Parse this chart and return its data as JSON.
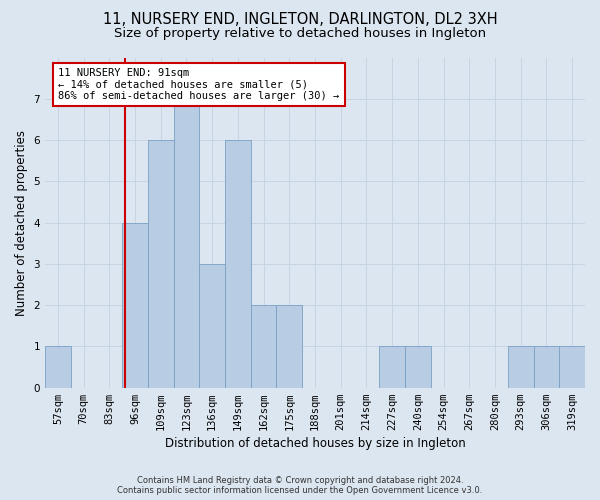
{
  "title": "11, NURSERY END, INGLETON, DARLINGTON, DL2 3XH",
  "subtitle": "Size of property relative to detached houses in Ingleton",
  "xlabel": "Distribution of detached houses by size in Ingleton",
  "ylabel": "Number of detached properties",
  "categories": [
    "57sqm",
    "70sqm",
    "83sqm",
    "96sqm",
    "109sqm",
    "123sqm",
    "136sqm",
    "149sqm",
    "162sqm",
    "175sqm",
    "188sqm",
    "201sqm",
    "214sqm",
    "227sqm",
    "240sqm",
    "254sqm",
    "267sqm",
    "280sqm",
    "293sqm",
    "306sqm",
    "319sqm"
  ],
  "values": [
    1,
    0,
    0,
    4,
    6,
    7,
    3,
    6,
    2,
    2,
    0,
    0,
    0,
    1,
    1,
    0,
    0,
    0,
    1,
    1,
    1
  ],
  "bar_color": "#b8cce4",
  "bar_edge_color": "#7aa0c4",
  "subject_line_color": "#cc0000",
  "annotation_text": "11 NURSERY END: 91sqm\n← 14% of detached houses are smaller (5)\n86% of semi-detached houses are larger (30) →",
  "annotation_box_color": "#ffffff",
  "annotation_box_edge": "#cc0000",
  "ylim": [
    0,
    8
  ],
  "yticks": [
    0,
    1,
    2,
    3,
    4,
    5,
    6,
    7
  ],
  "grid_color": "#c8d4e4",
  "bg_color": "#dce6f0",
  "footer_line1": "Contains HM Land Registry data © Crown copyright and database right 2024.",
  "footer_line2": "Contains public sector information licensed under the Open Government Licence v3.0.",
  "title_fontsize": 10.5,
  "subtitle_fontsize": 9.5,
  "xlabel_fontsize": 8.5,
  "ylabel_fontsize": 8.5,
  "tick_fontsize": 7.5,
  "annotation_fontsize": 7.5,
  "footer_fontsize": 6.0
}
